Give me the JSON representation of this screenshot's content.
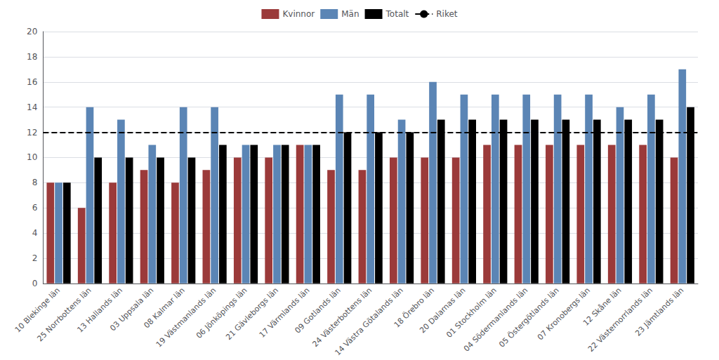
{
  "chart_data": {
    "type": "bar",
    "categories": [
      "10 Blekinge län",
      "25 Norrbottens län",
      "13 Hallands län",
      "03 Uppsala län",
      "08 Kalmar län",
      "19 Västmanlands län",
      "06 Jönköpings län",
      "21 Gävleborgs län",
      "17 Värmlands län",
      "09 Gotlands län",
      "24 Västerbottens län",
      "14 Västra Götalands län",
      "18 Örebro län",
      "20 Dalarnas län",
      "01 Stockholm län",
      "04 Södermanlands län",
      "05 Östergötlands län",
      "07 Kronobergs län",
      "12 Skåne län",
      "22 Västernorrlands län",
      "23 Jämtlands län"
    ],
    "series": [
      {
        "name": "Kvinnor",
        "type": "bar",
        "color": "#9B3A3A",
        "values": [
          8,
          6,
          8,
          9,
          8,
          9,
          10,
          10,
          11,
          9,
          9,
          10,
          10,
          10,
          11,
          11,
          11,
          11,
          11,
          11,
          10
        ]
      },
      {
        "name": "Män",
        "type": "bar",
        "color": "#5B85B5",
        "values": [
          8,
          14,
          13,
          11,
          14,
          14,
          11,
          11,
          11,
          15,
          15,
          13,
          16,
          15,
          15,
          15,
          15,
          15,
          14,
          15,
          17
        ]
      },
      {
        "name": "Totalt",
        "type": "bar",
        "color": "#000000",
        "values": [
          8,
          10,
          10,
          10,
          10,
          11,
          11,
          11,
          11,
          12,
          12,
          12,
          13,
          13,
          13,
          13,
          13,
          13,
          13,
          13,
          14
        ]
      },
      {
        "name": "Riket",
        "type": "hline",
        "color": "#000000",
        "line_style": "dashed",
        "value": 12
      }
    ],
    "ylim": [
      0,
      20
    ],
    "yticks": [
      0,
      2,
      4,
      6,
      8,
      10,
      12,
      14,
      16,
      18,
      20
    ],
    "grid": true,
    "legend": "top"
  }
}
